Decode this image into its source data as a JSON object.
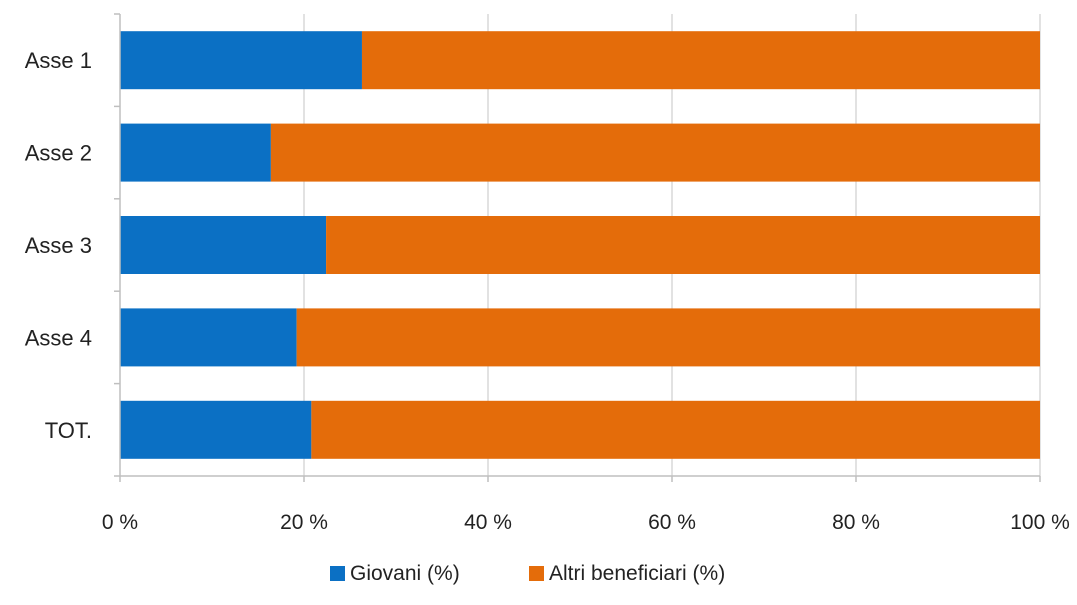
{
  "chart_data": {
    "type": "bar",
    "orientation": "horizontal",
    "stacked": "percent",
    "categories": [
      "Asse 1",
      "Asse 2",
      "Asse 3",
      "Asse 4",
      "TOT."
    ],
    "series": [
      {
        "name": "Giovani (%)",
        "values": [
          26.3,
          16.4,
          22.4,
          19.2,
          20.8
        ],
        "color": "#0b70c4"
      },
      {
        "name": "Altri beneficiari (%)",
        "values": [
          73.7,
          83.6,
          77.6,
          80.8,
          79.2
        ],
        "color": "#e46c0a"
      }
    ],
    "x_ticks": [
      "0 %",
      "20 %",
      "40 %",
      "60 %",
      "80 %",
      "100 %"
    ],
    "xlim": [
      0,
      100
    ],
    "grid": true,
    "legend_position": "bottom",
    "title": "",
    "xlabel": "",
    "ylabel": ""
  }
}
